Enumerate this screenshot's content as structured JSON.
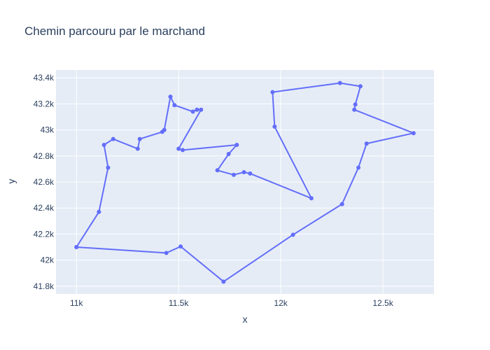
{
  "chart_data": {
    "type": "line",
    "mode": "lines+markers",
    "title": "Chemin parcouru par le marchand",
    "xlabel": "x",
    "ylabel": "y",
    "xlim": [
      10900,
      12750
    ],
    "ylim": [
      41740,
      43460
    ],
    "grid": true,
    "x_ticks": [
      {
        "value": 11000,
        "label": "11k"
      },
      {
        "value": 11500,
        "label": "11.5k"
      },
      {
        "value": 12000,
        "label": "12k"
      },
      {
        "value": 12500,
        "label": "12.5k"
      }
    ],
    "y_ticks": [
      {
        "value": 41800,
        "label": "41.8k"
      },
      {
        "value": 42000,
        "label": "42k"
      },
      {
        "value": 42200,
        "label": "42.2k"
      },
      {
        "value": 42400,
        "label": "42.4k"
      },
      {
        "value": 42600,
        "label": "42.6k"
      },
      {
        "value": 42800,
        "label": "42.8k"
      },
      {
        "value": 43000,
        "label": "43k"
      },
      {
        "value": 43200,
        "label": "43.2k"
      },
      {
        "value": 43400,
        "label": "43.4k"
      }
    ],
    "colors": {
      "line": "#636efa",
      "plot_bg": "#e5ecf6",
      "grid": "#ffffff",
      "text": "#2a3f5f"
    },
    "points": [
      {
        "x": 11000,
        "y": 42100
      },
      {
        "x": 11110,
        "y": 42370
      },
      {
        "x": 11155,
        "y": 42710
      },
      {
        "x": 11135,
        "y": 42885
      },
      {
        "x": 11180,
        "y": 42930
      },
      {
        "x": 11300,
        "y": 42855
      },
      {
        "x": 11310,
        "y": 42930
      },
      {
        "x": 11420,
        "y": 42985
      },
      {
        "x": 11430,
        "y": 43000
      },
      {
        "x": 11460,
        "y": 43255
      },
      {
        "x": 11480,
        "y": 43190
      },
      {
        "x": 11570,
        "y": 43140
      },
      {
        "x": 11590,
        "y": 43155
      },
      {
        "x": 11610,
        "y": 43155
      },
      {
        "x": 11500,
        "y": 42855
      },
      {
        "x": 11520,
        "y": 42845
      },
      {
        "x": 11785,
        "y": 42885
      },
      {
        "x": 11745,
        "y": 42815
      },
      {
        "x": 11690,
        "y": 42690
      },
      {
        "x": 11770,
        "y": 42655
      },
      {
        "x": 11820,
        "y": 42675
      },
      {
        "x": 11850,
        "y": 42665
      },
      {
        "x": 12150,
        "y": 42475
      },
      {
        "x": 11970,
        "y": 43025
      },
      {
        "x": 11960,
        "y": 43290
      },
      {
        "x": 12290,
        "y": 43360
      },
      {
        "x": 12390,
        "y": 43335
      },
      {
        "x": 12365,
        "y": 43195
      },
      {
        "x": 12360,
        "y": 43155
      },
      {
        "x": 12650,
        "y": 42975
      },
      {
        "x": 12420,
        "y": 42895
      },
      {
        "x": 12380,
        "y": 42710
      },
      {
        "x": 12300,
        "y": 42430
      },
      {
        "x": 12060,
        "y": 42195
      },
      {
        "x": 11720,
        "y": 41835
      },
      {
        "x": 11510,
        "y": 42105
      },
      {
        "x": 11440,
        "y": 42055
      },
      {
        "x": 11000,
        "y": 42100
      }
    ]
  }
}
